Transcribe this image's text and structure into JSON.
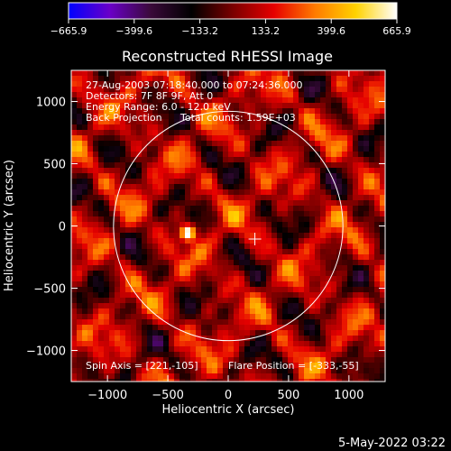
{
  "chart_data": {
    "type": "heatmap",
    "title": "Reconstructed RHESSI Image",
    "xlabel": "Heliocentric X (arcsec)",
    "ylabel": "Heliocentric Y (arcsec)",
    "xlim": [
      -1300,
      1300
    ],
    "ylim": [
      -1250,
      1250
    ],
    "x_ticks": [
      -1000,
      -500,
      0,
      500,
      1000
    ],
    "x_tick_labels": [
      "−1000",
      "−500",
      "0",
      "500",
      "1000"
    ],
    "y_ticks": [
      -1000,
      -500,
      0,
      500,
      1000
    ],
    "y_tick_labels": [
      "−1000",
      "−500",
      "0",
      "500",
      "1000"
    ],
    "colorbar": {
      "range": [
        -665.9,
        665.9
      ],
      "ticks": [
        -665.9,
        -399.6,
        -133.2,
        133.2,
        399.6,
        665.9
      ],
      "tick_labels": [
        "−665.9",
        "−399.6",
        "−133.2",
        "133.2",
        "399.6",
        "665.9"
      ],
      "colors": [
        "#0000ff",
        "#6a00c8",
        "#3a0a3a",
        "#000000",
        "#7a0000",
        "#e60000",
        "#ff7a00",
        "#ffd200",
        "#ffffff"
      ]
    },
    "annotations": {
      "time_range": "27-Aug-2003 07:18:40.000 to 07:24:36.000",
      "detectors": "Detectors: 7F 8F 9F, Att 0",
      "energy": "Energy Range: 6.0 - 12.0 keV",
      "method": "Back Projection",
      "counts": "Total counts: 1.59E+03",
      "spin_axis": "Spin Axis = [221,-105]",
      "flare_position": "Flare Position = [-333,-55]"
    },
    "solar_disk_center": [
      0,
      0
    ],
    "solar_disk_radius": 950,
    "spin_axis_marker": [
      221,
      -105
    ],
    "bright_source": {
      "x": -333,
      "y": -55,
      "value": 665.9
    }
  },
  "footer": {
    "date": "5-May-2022 03:22"
  }
}
